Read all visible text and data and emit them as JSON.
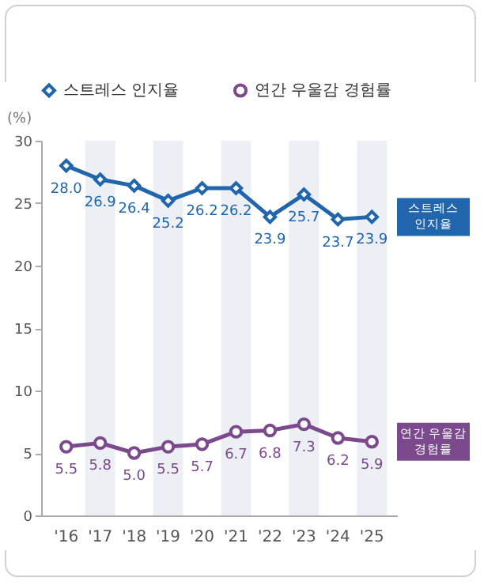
{
  "chart_data": {
    "type": "line",
    "ylabel": "(%)",
    "categories": [
      "'16",
      "'17",
      "'18",
      "'19",
      "'20",
      "'21",
      "'22",
      "'23",
      "'24",
      "'25"
    ],
    "series": [
      {
        "name": "스트레스 인지율",
        "color": "#2166ac",
        "marker": "diamond",
        "values": [
          28.0,
          26.9,
          26.4,
          25.2,
          26.2,
          26.2,
          23.9,
          25.7,
          23.7,
          23.9
        ],
        "value_labels": [
          "28.0",
          "26.9",
          "26.4",
          "25.2",
          "26.2",
          "26.2",
          "23.9",
          "25.7",
          "23.7",
          "23.9"
        ]
      },
      {
        "name": "연간 우울감 경험률",
        "color": "#7b4a8c",
        "marker": "circle",
        "values": [
          5.5,
          5.8,
          5.0,
          5.5,
          5.7,
          6.7,
          6.8,
          7.3,
          6.2,
          5.9
        ],
        "value_labels": [
          "5.5",
          "5.8",
          "5.0",
          "5.5",
          "5.7",
          "6.7",
          "6.8",
          "7.3",
          "6.2",
          "5.9"
        ]
      }
    ],
    "ylim": [
      0,
      30
    ],
    "yticks": [
      0,
      5,
      10,
      15,
      20,
      25,
      30
    ],
    "grid": false,
    "legend": "top",
    "bands": [
      {
        "axis": "x",
        "from": "'17",
        "to": "'17",
        "color": "#eceff4"
      },
      {
        "axis": "x",
        "from": "'19",
        "to": "'19",
        "color": "#eceff4"
      },
      {
        "axis": "x",
        "from": "'21",
        "to": "'21",
        "color": "#eceff4"
      },
      {
        "axis": "x",
        "from": "'23",
        "to": "'23",
        "color": "#eceff4"
      },
      {
        "axis": "x",
        "from": "'25",
        "to": "'25",
        "color": "#eceff4"
      }
    ]
  }
}
